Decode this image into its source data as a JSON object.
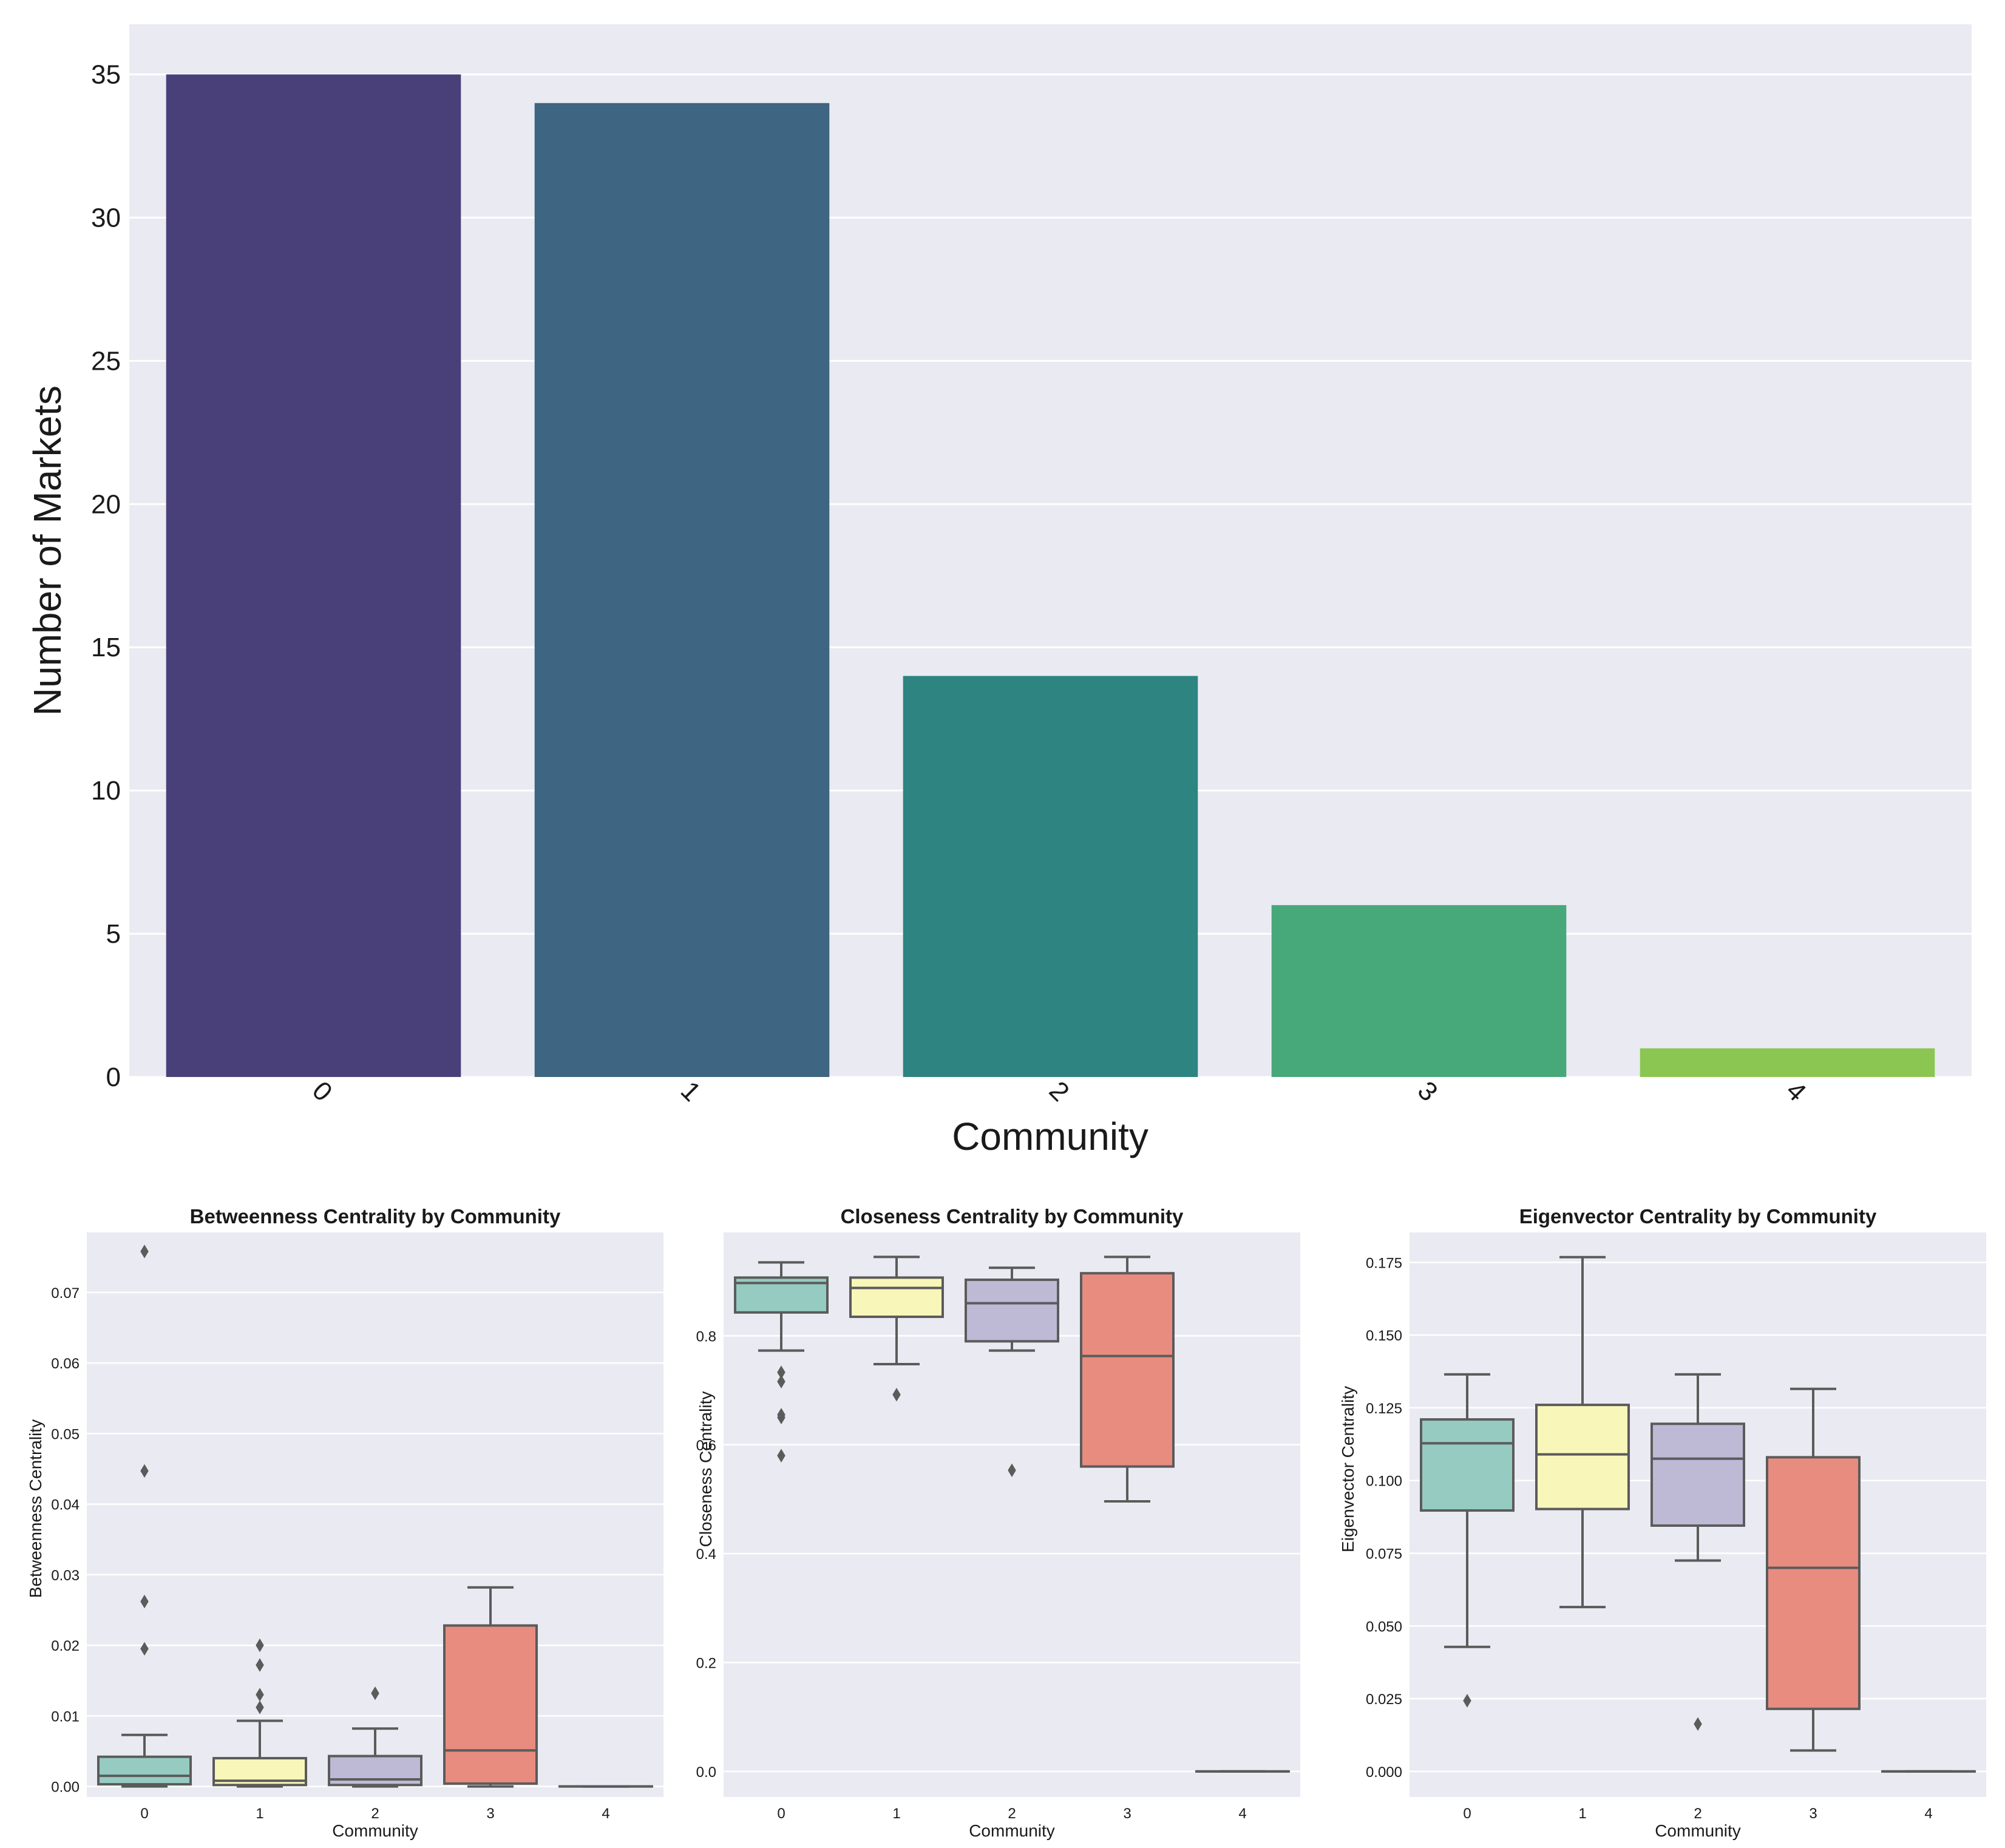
{
  "chart_data": [
    {
      "type": "bar",
      "xlabel": "Community",
      "ylabel": "Number of Markets",
      "categories": [
        "0",
        "1",
        "2",
        "3",
        "4"
      ],
      "values": [
        35,
        34,
        14,
        6,
        1
      ],
      "ylim": [
        0,
        36.75
      ],
      "yticks": [
        0,
        5,
        10,
        15,
        20,
        25,
        30,
        35
      ],
      "grid": true,
      "colors": [
        "#4a4079",
        "#3e6581",
        "#2d8481",
        "#47a879",
        "#8bc653"
      ]
    },
    {
      "type": "box",
      "title": "Betweenness Centrality by Community",
      "xlabel": "Community",
      "ylabel": "Betweenness Centrality",
      "categories": [
        "0",
        "1",
        "2",
        "3",
        "4"
      ],
      "ylim": [
        -0.0015,
        0.0785
      ],
      "yticks": [
        0.0,
        0.01,
        0.02,
        0.03,
        0.04,
        0.05,
        0.06,
        0.07
      ],
      "tick_labels": [
        "0.00",
        "0.01",
        "0.02",
        "0.03",
        "0.04",
        "0.05",
        "0.06",
        "0.07"
      ],
      "grid": true,
      "colors": [
        "#96cbc1",
        "#f8f6b9",
        "#beb9d5",
        "#e88c80",
        "#85afcf"
      ],
      "boxes": [
        {
          "whisker_low": 0.0,
          "q1": 0.0003,
          "median": 0.0015,
          "q3": 0.0042,
          "whisker_high": 0.0073,
          "outliers": [
            0.0195,
            0.0262,
            0.0447,
            0.0758
          ]
        },
        {
          "whisker_low": 0.0,
          "q1": 0.0002,
          "median": 0.0008,
          "q3": 0.004,
          "whisker_high": 0.0093,
          "outliers": [
            0.0112,
            0.013,
            0.0172,
            0.02
          ]
        },
        {
          "whisker_low": 0.0,
          "q1": 0.0002,
          "median": 0.001,
          "q3": 0.0043,
          "whisker_high": 0.0082,
          "outliers": [
            0.0132
          ]
        },
        {
          "whisker_low": 0.0,
          "q1": 0.0004,
          "median": 0.0051,
          "q3": 0.0228,
          "whisker_high": 0.0282,
          "outliers": []
        },
        {
          "whisker_low": 0.0,
          "q1": 0.0,
          "median": 0.0,
          "q3": 0.0,
          "whisker_high": 0.0,
          "outliers": []
        }
      ]
    },
    {
      "type": "box",
      "title": "Closeness Centrality by Community",
      "xlabel": "Community",
      "ylabel": "Closeness Centrality",
      "categories": [
        "0",
        "1",
        "2",
        "3",
        "4"
      ],
      "ylim": [
        -0.047,
        0.99
      ],
      "yticks": [
        0.0,
        0.2,
        0.4,
        0.6,
        0.8
      ],
      "tick_labels": [
        "0.0",
        "0.2",
        "0.4",
        "0.6",
        "0.8"
      ],
      "grid": true,
      "colors": [
        "#96cbc1",
        "#f8f6b9",
        "#beb9d5",
        "#e88c80",
        "#85afcf"
      ],
      "boxes": [
        {
          "whisker_low": 0.773,
          "q1": 0.843,
          "median": 0.897,
          "q3": 0.907,
          "whisker_high": 0.935,
          "outliers": [
            0.58,
            0.65,
            0.655,
            0.716,
            0.733
          ]
        },
        {
          "whisker_low": 0.748,
          "q1": 0.835,
          "median": 0.888,
          "q3": 0.907,
          "whisker_high": 0.945,
          "outliers": [
            0.692
          ]
        },
        {
          "whisker_low": 0.773,
          "q1": 0.79,
          "median": 0.86,
          "q3": 0.903,
          "whisker_high": 0.925,
          "outliers": [
            0.553
          ]
        },
        {
          "whisker_low": 0.496,
          "q1": 0.56,
          "median": 0.763,
          "q3": 0.915,
          "whisker_high": 0.945,
          "outliers": []
        },
        {
          "whisker_low": 0.0,
          "q1": 0.0,
          "median": 0.0,
          "q3": 0.0,
          "whisker_high": 0.0,
          "outliers": []
        }
      ]
    },
    {
      "type": "box",
      "title": "Eigenvector Centrality by Community",
      "xlabel": "Community",
      "ylabel": "Eigenvector Centrality",
      "categories": [
        "0",
        "1",
        "2",
        "3",
        "4"
      ],
      "ylim": [
        -0.0088,
        0.1853
      ],
      "yticks": [
        0.0,
        0.025,
        0.05,
        0.075,
        0.1,
        0.125,
        0.15,
        0.175
      ],
      "tick_labels": [
        "0.000",
        "0.025",
        "0.050",
        "0.075",
        "0.100",
        "0.125",
        "0.150",
        "0.175"
      ],
      "grid": true,
      "colors": [
        "#96cbc1",
        "#f8f6b9",
        "#beb9d5",
        "#e88c80",
        "#85afcf"
      ],
      "boxes": [
        {
          "whisker_low": 0.0428,
          "q1": 0.0897,
          "median": 0.1128,
          "q3": 0.121,
          "whisker_high": 0.1365,
          "outliers": [
            0.0243
          ]
        },
        {
          "whisker_low": 0.0565,
          "q1": 0.0902,
          "median": 0.109,
          "q3": 0.126,
          "whisker_high": 0.1768,
          "outliers": []
        },
        {
          "whisker_low": 0.0725,
          "q1": 0.0845,
          "median": 0.1075,
          "q3": 0.1195,
          "whisker_high": 0.1365,
          "outliers": [
            0.0163
          ]
        },
        {
          "whisker_low": 0.0072,
          "q1": 0.0215,
          "median": 0.07,
          "q3": 0.108,
          "whisker_high": 0.1315,
          "outliers": []
        },
        {
          "whisker_low": 0.0,
          "q1": 0.0,
          "median": 0.0,
          "q3": 0.0,
          "whisker_high": 0.0,
          "outliers": []
        }
      ]
    }
  ]
}
